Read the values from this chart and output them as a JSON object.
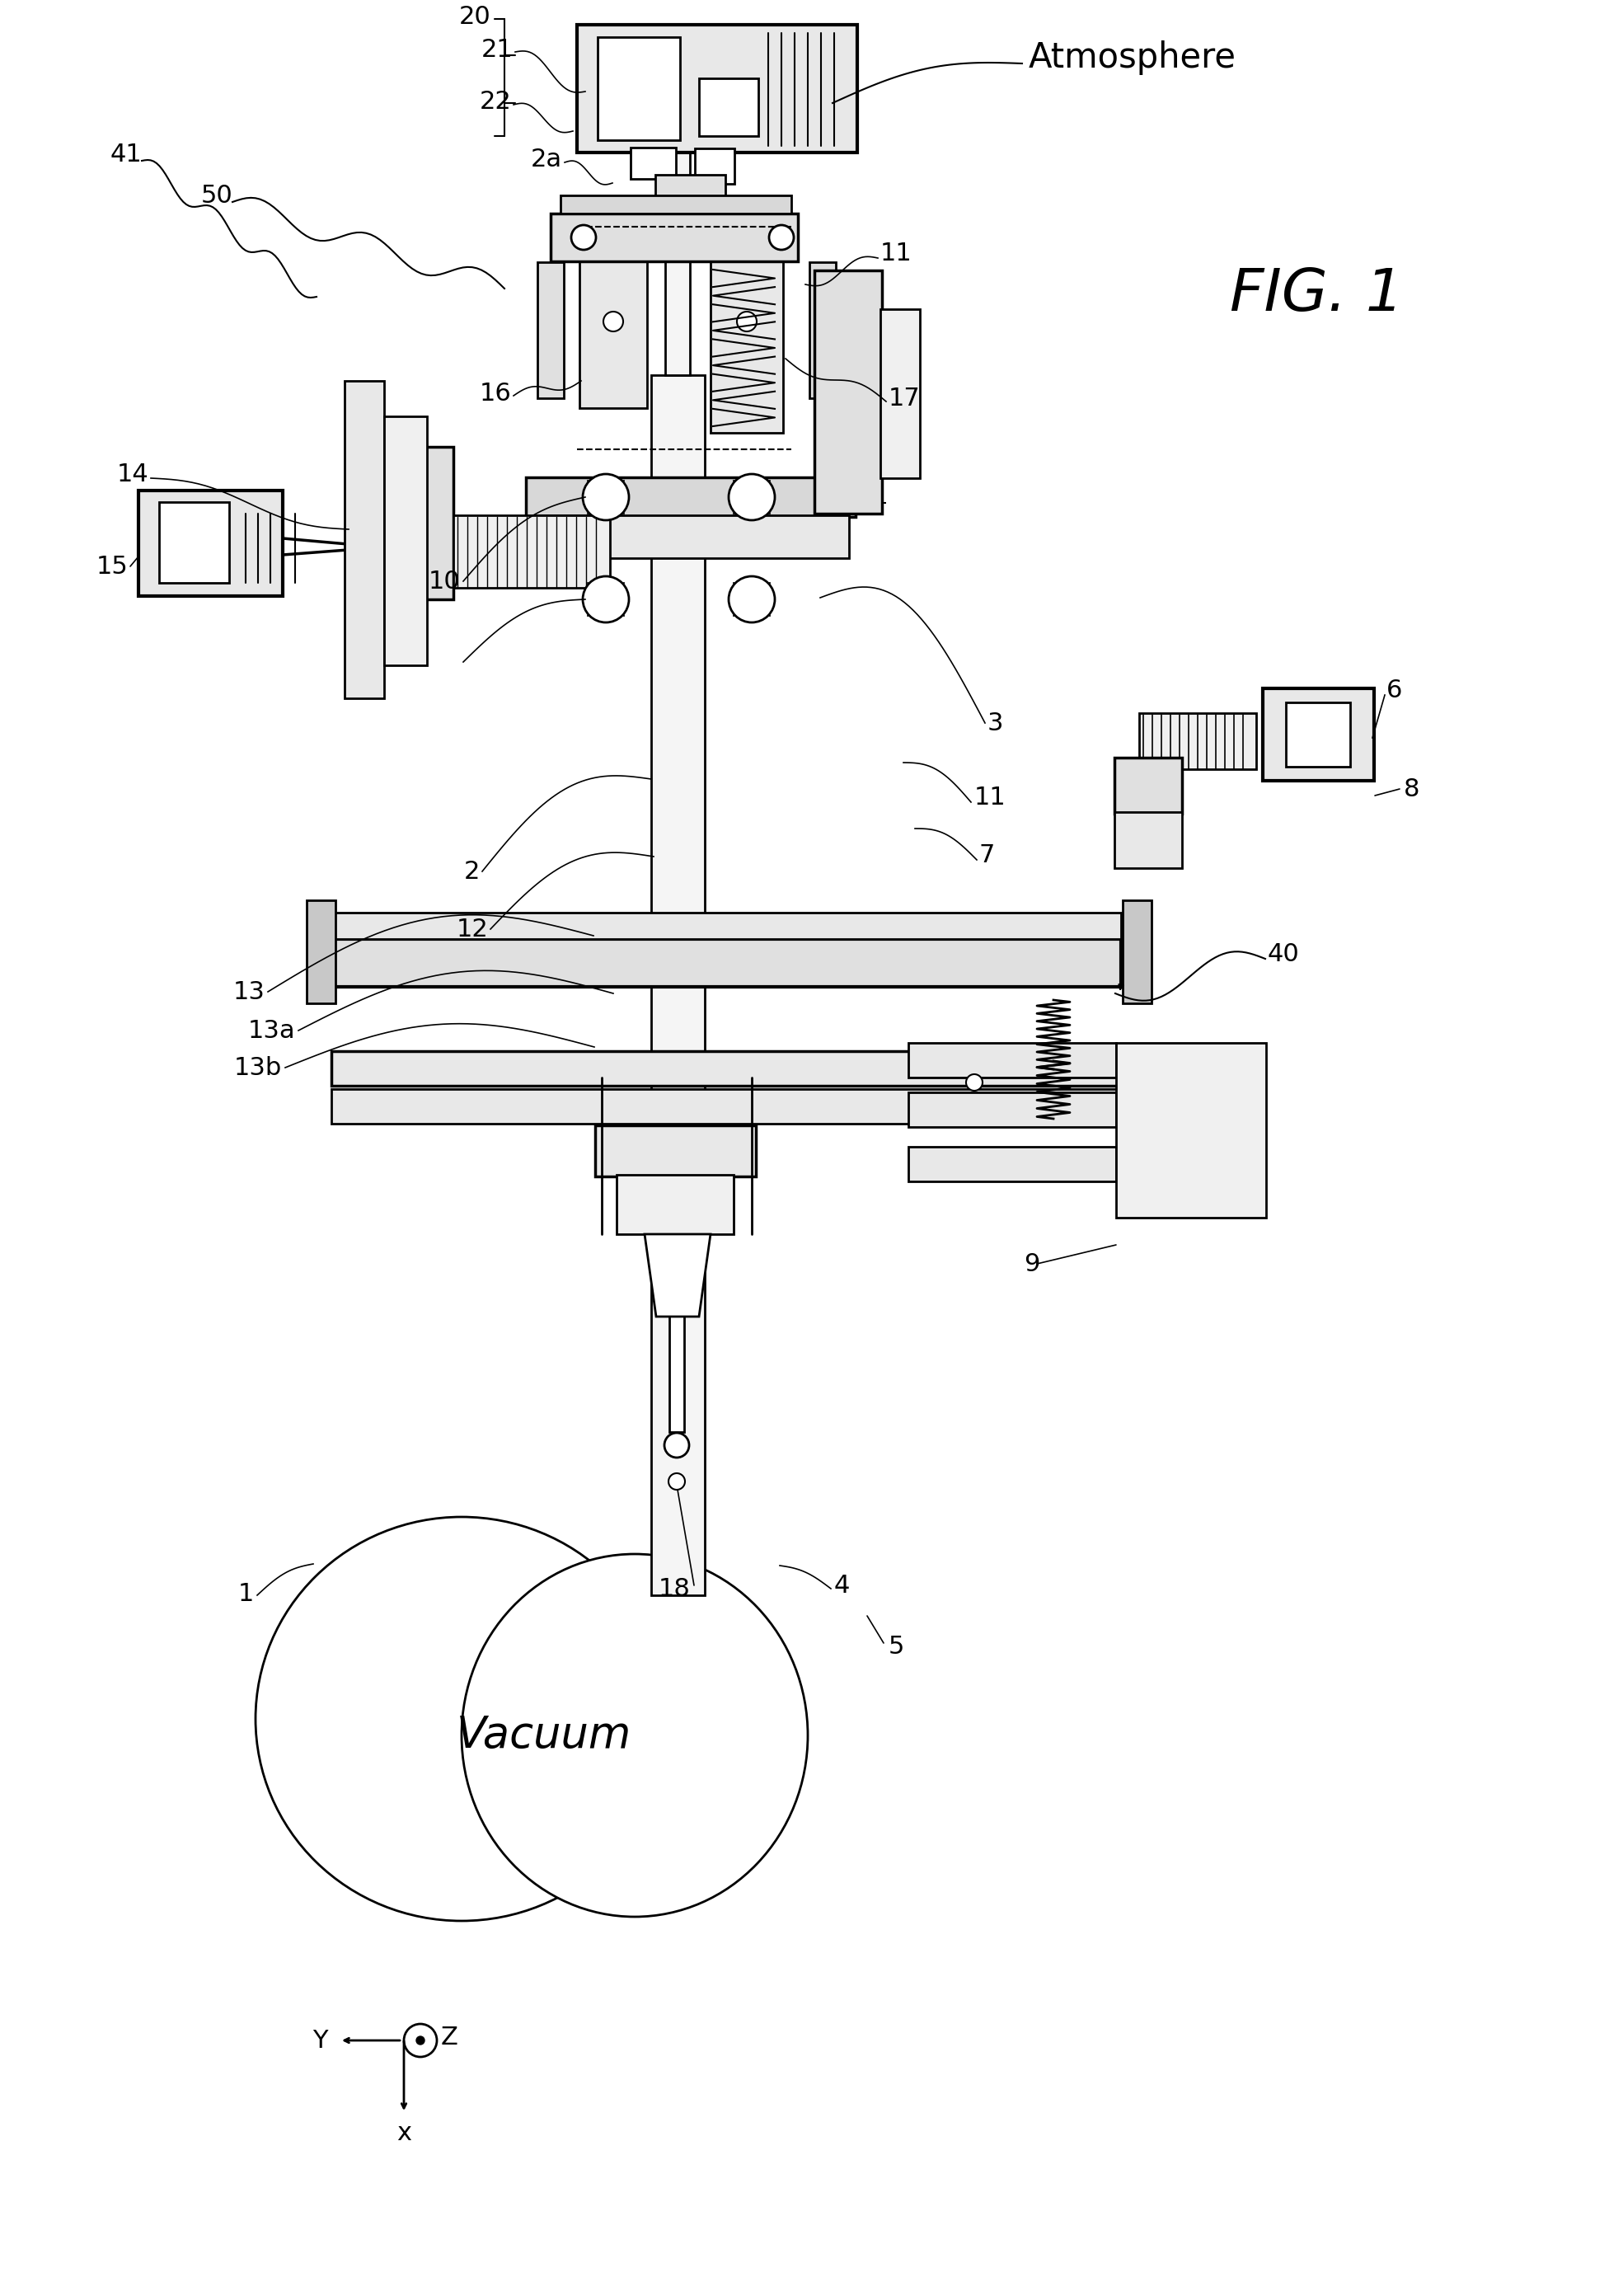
{
  "bg_color": "#ffffff",
  "line_color": "#000000",
  "fig_width": 19.69,
  "fig_height": 27.85,
  "atmosphere": "Atmosphere",
  "vacuum": "Vacuum",
  "fig_label": "FIG. 1"
}
